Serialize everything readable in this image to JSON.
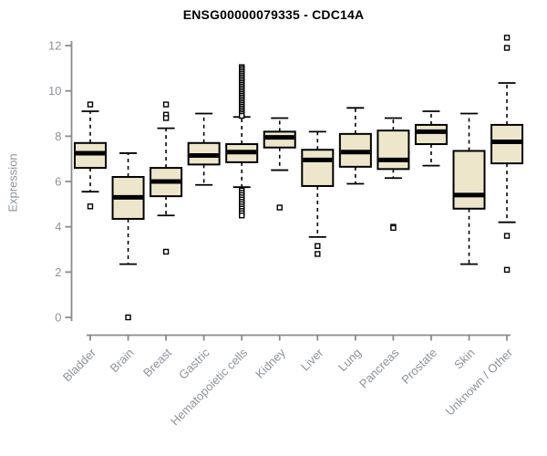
{
  "chart_data": {
    "type": "boxplot",
    "title": "ENSG00000079335 - CDC14A",
    "ylabel": "Expression",
    "xlabel": "",
    "ylim": [
      0,
      12
    ],
    "yticks": [
      0,
      2,
      4,
      6,
      8,
      10,
      12
    ],
    "colors": {
      "box_fill": "#ede6cb",
      "box_stroke": "#000000",
      "axis": "#8a8a8a",
      "tick_label": "#8d929a",
      "title": "#000000"
    },
    "categories": [
      "Bladder",
      "Brain",
      "Breast",
      "Gastric",
      "Hematopoietic cells",
      "Kidney",
      "Liver",
      "Lung",
      "Pancreas",
      "Prostate",
      "Skin",
      "Unknown / Other"
    ],
    "series": [
      {
        "name": "Bladder",
        "whisker_low": 5.55,
        "q1": 6.6,
        "median": 7.25,
        "q3": 7.7,
        "whisker_high": 9.1,
        "outliers": [
          9.4,
          4.9
        ]
      },
      {
        "name": "Brain",
        "whisker_low": 2.35,
        "q1": 4.35,
        "median": 5.3,
        "q3": 6.2,
        "whisker_high": 7.25,
        "outliers": [
          0
        ]
      },
      {
        "name": "Breast",
        "whisker_low": 4.5,
        "q1": 5.35,
        "median": 6.0,
        "q3": 6.6,
        "whisker_high": 8.35,
        "outliers": [
          9.4,
          8.95,
          8.8,
          2.9
        ]
      },
      {
        "name": "Gastric",
        "whisker_low": 5.85,
        "q1": 6.75,
        "median": 7.15,
        "q3": 7.7,
        "whisker_high": 9.0,
        "outliers": []
      },
      {
        "name": "Hematopoietic cells",
        "whisker_low": 5.75,
        "q1": 6.85,
        "median": 7.3,
        "q3": 7.65,
        "whisker_high": 8.85,
        "outliers": [
          11.05,
          10.98,
          10.9,
          10.82,
          10.74,
          10.66,
          10.58,
          10.5,
          10.42,
          10.34,
          10.26,
          10.18,
          10.1,
          10.02,
          9.94,
          9.86,
          9.78,
          9.7,
          9.62,
          9.54,
          9.46,
          9.38,
          9.3,
          9.22,
          9.14,
          9.06,
          8.98,
          8.9,
          5.6,
          5.5,
          5.4,
          5.3,
          5.2,
          5.1,
          5.0,
          4.9,
          4.8,
          4.7,
          4.6,
          4.5
        ]
      },
      {
        "name": "Kidney",
        "whisker_low": 6.5,
        "q1": 7.5,
        "median": 7.95,
        "q3": 8.2,
        "whisker_high": 8.8,
        "outliers": [
          4.85
        ]
      },
      {
        "name": "Liver",
        "whisker_low": 3.55,
        "q1": 5.8,
        "median": 6.95,
        "q3": 7.4,
        "whisker_high": 8.2,
        "outliers": [
          3.15,
          2.8
        ]
      },
      {
        "name": "Lung",
        "whisker_low": 5.9,
        "q1": 6.65,
        "median": 7.3,
        "q3": 8.1,
        "whisker_high": 9.25,
        "outliers": []
      },
      {
        "name": "Pancreas",
        "whisker_low": 6.15,
        "q1": 6.55,
        "median": 6.95,
        "q3": 8.25,
        "whisker_high": 8.8,
        "outliers": [
          4.0,
          3.95
        ]
      },
      {
        "name": "Prostate",
        "whisker_low": 6.7,
        "q1": 7.65,
        "median": 8.2,
        "q3": 8.5,
        "whisker_high": 9.1,
        "outliers": []
      },
      {
        "name": "Skin",
        "whisker_low": 2.35,
        "q1": 4.8,
        "median": 5.4,
        "q3": 7.35,
        "whisker_high": 9.0,
        "outliers": []
      },
      {
        "name": "Unknown / Other",
        "whisker_low": 4.2,
        "q1": 6.8,
        "median": 7.75,
        "q3": 8.5,
        "whisker_high": 10.35,
        "outliers": [
          12.35,
          11.9,
          3.6,
          2.1
        ]
      }
    ],
    "legend": null,
    "grid": false
  }
}
